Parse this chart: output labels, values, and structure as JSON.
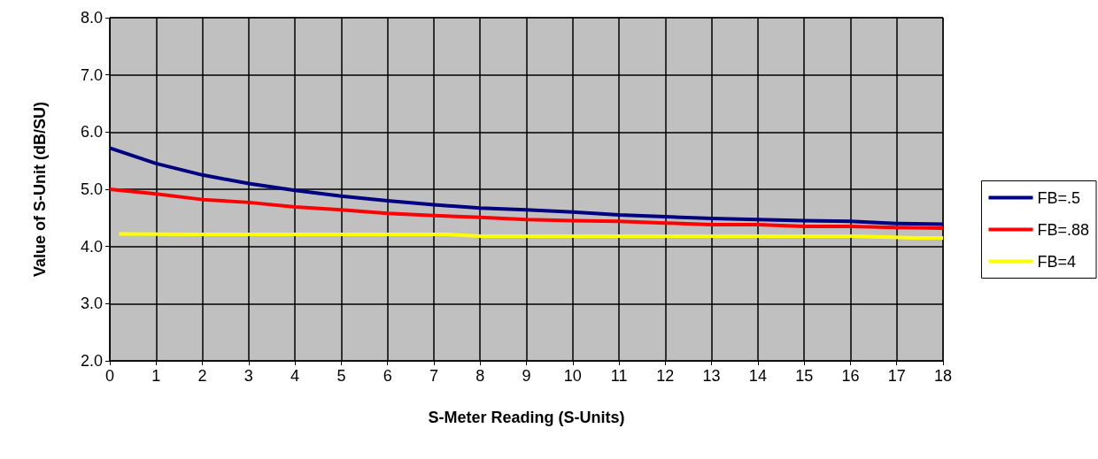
{
  "chart_data": {
    "type": "line",
    "xlabel": "S-Meter Reading (S-Units)",
    "ylabel": "Value of S-Unit (dB/SU)",
    "xlim": [
      0,
      18
    ],
    "xticks": [
      0,
      1,
      2,
      3,
      4,
      5,
      6,
      7,
      8,
      9,
      10,
      11,
      12,
      13,
      14,
      15,
      16,
      17,
      18
    ],
    "ylim": [
      2,
      8
    ],
    "yticks": [
      {
        "value": 2,
        "label": "2.0"
      },
      {
        "value": 3,
        "label": "3.0"
      },
      {
        "value": 4,
        "label": "4.0"
      },
      {
        "value": 5,
        "label": "5.0"
      },
      {
        "value": 6,
        "label": "6.0"
      },
      {
        "value": 7,
        "label": "7.0"
      },
      {
        "value": 8,
        "label": "8.0"
      }
    ],
    "grid": true,
    "legend": "right",
    "marker": "none",
    "line_style": "solid",
    "series": [
      {
        "name": "FB=.5",
        "color": "#000080",
        "x": [
          0,
          1,
          2,
          3,
          4,
          5,
          6,
          7,
          8,
          9,
          10,
          11,
          12,
          13,
          14,
          15,
          16,
          17,
          18
        ],
        "values": [
          5.72,
          5.45,
          5.25,
          5.1,
          4.98,
          4.88,
          4.8,
          4.73,
          4.67,
          4.64,
          4.6,
          4.55,
          4.52,
          4.49,
          4.47,
          4.45,
          4.44,
          4.4,
          4.39
        ]
      },
      {
        "name": "FB=.88",
        "color": "#ff0000",
        "x": [
          0,
          1,
          2,
          3,
          4,
          5,
          6,
          7,
          8,
          9,
          10,
          11,
          12,
          13,
          14,
          15,
          16,
          17,
          18
        ],
        "values": [
          5.0,
          4.92,
          4.82,
          4.77,
          4.69,
          4.64,
          4.58,
          4.54,
          4.51,
          4.47,
          4.45,
          4.44,
          4.41,
          4.38,
          4.38,
          4.35,
          4.35,
          4.33,
          4.32
        ]
      },
      {
        "name": "FB=4",
        "color": "#ffff00",
        "x": [
          0.2,
          2,
          4,
          6,
          7.3,
          8,
          10,
          12,
          14,
          16,
          17.4,
          18
        ],
        "values": [
          4.22,
          4.21,
          4.21,
          4.21,
          4.21,
          4.18,
          4.18,
          4.18,
          4.18,
          4.18,
          4.15,
          4.15
        ]
      }
    ]
  }
}
